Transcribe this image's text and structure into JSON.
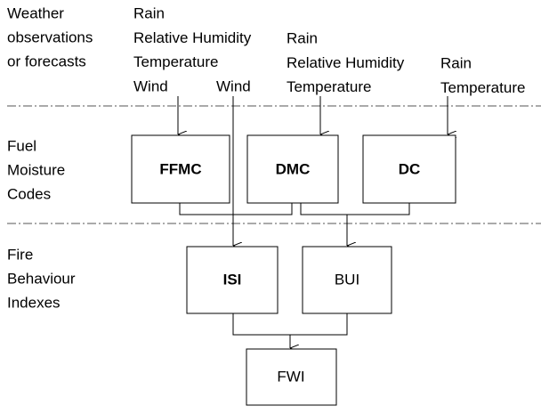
{
  "rows": [
    {
      "lines": [
        "Weather",
        "observations",
        "or forecasts"
      ]
    },
    {
      "lines": [
        "Fuel",
        "Moisture",
        "Codes"
      ]
    },
    {
      "lines": [
        "Fire",
        "Behaviour",
        "Indexes"
      ]
    }
  ],
  "inputs": [
    {
      "lines": [
        "Rain",
        "Relative Humidity",
        "Temperature",
        "Wind"
      ]
    },
    {
      "lines": [
        "Wind"
      ]
    },
    {
      "lines": [
        "Rain",
        "Relative Humidity",
        "Temperature"
      ]
    },
    {
      "lines": [
        "Rain",
        "Temperature"
      ]
    }
  ],
  "boxes": [
    {
      "label": "FFMC"
    },
    {
      "label": "DMC"
    },
    {
      "label": "DC"
    },
    {
      "label": "ISI"
    },
    {
      "label": "BUI"
    },
    {
      "label": "FWI"
    }
  ]
}
